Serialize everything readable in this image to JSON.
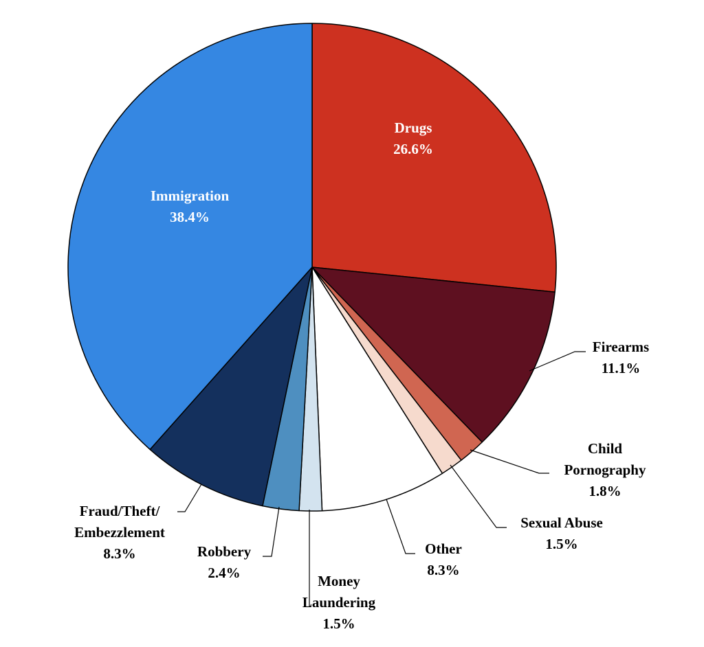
{
  "chart_data": {
    "type": "pie",
    "slices": [
      {
        "label_lines": [
          "Drugs"
        ],
        "value_text": "26.6%",
        "value": 26.6,
        "color": "#cd3120",
        "text_color": "#ffffff",
        "label_inside": true
      },
      {
        "label_lines": [
          "Firearms"
        ],
        "value_text": "11.1%",
        "value": 11.1,
        "color": "#5e1020",
        "text_color": "#000000",
        "label_inside": false
      },
      {
        "label_lines": [
          "Child",
          "Pornography"
        ],
        "value_text": "1.8%",
        "value": 1.8,
        "color": "#d06651",
        "text_color": "#000000",
        "label_inside": false
      },
      {
        "label_lines": [
          "Sexual Abuse"
        ],
        "value_text": "1.5%",
        "value": 1.5,
        "color": "#f6dacd",
        "text_color": "#000000",
        "label_inside": false
      },
      {
        "label_lines": [
          "Other"
        ],
        "value_text": "8.3%",
        "value": 8.3,
        "color": "#ffffff",
        "text_color": "#000000",
        "label_inside": false
      },
      {
        "label_lines": [
          "Money",
          "Laundering"
        ],
        "value_text": "1.5%",
        "value": 1.5,
        "color": "#d3e3ef",
        "text_color": "#000000",
        "label_inside": false
      },
      {
        "label_lines": [
          "Robbery"
        ],
        "value_text": "2.4%",
        "value": 2.4,
        "color": "#4e8fc0",
        "text_color": "#000000",
        "label_inside": false
      },
      {
        "label_lines": [
          "Fraud/Theft/",
          "Embezzlement"
        ],
        "value_text": "8.3%",
        "value": 8.3,
        "color": "#14305d",
        "text_color": "#000000",
        "label_inside": false
      },
      {
        "label_lines": [
          "Immigration"
        ],
        "value_text": "38.4%",
        "value": 38.4,
        "color": "#3587e2",
        "text_color": "#ffffff",
        "label_inside": true
      }
    ]
  }
}
